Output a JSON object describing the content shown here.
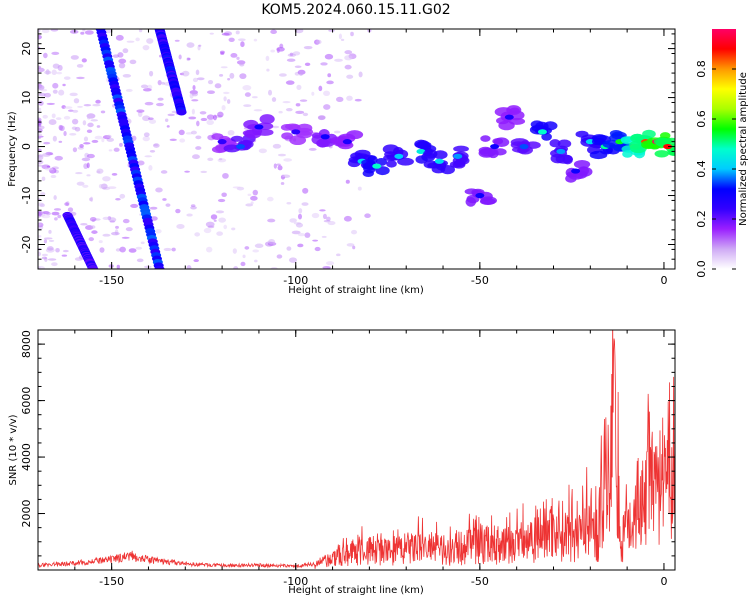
{
  "title": "KOM5.2024.060.15.11.G02",
  "chart_data": [
    {
      "type": "heatmap",
      "xlabel": "Height of straight line (km)",
      "ylabel": "Frequency (Hz)",
      "xlim": [
        -170,
        3
      ],
      "ylim": [
        -25,
        24
      ],
      "xticks": [
        -150,
        -100,
        -50,
        0
      ],
      "yticks": [
        20,
        10,
        0,
        -10,
        -20
      ],
      "colorbar": {
        "label": "Normalized spectral amplitude",
        "range": [
          0,
          0.96
        ],
        "ticks": [
          "0.0",
          "0.2",
          "0.4",
          "0.6",
          "0.8"
        ],
        "colors": [
          "#ffffff",
          "#cfaaf5",
          "#9a1fff",
          "#3300ff",
          "#0000ff",
          "#00ccff",
          "#00ffcc",
          "#00ff00",
          "#aaff00",
          "#ffff00",
          "#ff9900",
          "#ff0000",
          "#ff0066"
        ]
      },
      "streaks": [
        {
          "x_at_top": -153,
          "x_at_bottom": -137,
          "y_top": 24,
          "y_bottom": -25,
          "amplitude": 0.3
        },
        {
          "x_at_top": -137,
          "x_at_bottom": -131,
          "y_top": 24,
          "y_bottom": 7,
          "amplitude": 0.28
        },
        {
          "x_at_top": -162,
          "x_at_bottom": -155,
          "y_top": -14,
          "y_bottom": -25,
          "amplitude": 0.25
        }
      ],
      "signal_band": [
        {
          "x": -120,
          "y": 1,
          "amplitude": 0.25
        },
        {
          "x": -115,
          "y": 0,
          "amplitude": 0.35
        },
        {
          "x": -110,
          "y": 4,
          "amplitude": 0.3
        },
        {
          "x": -100,
          "y": 3,
          "amplitude": 0.25
        },
        {
          "x": -92,
          "y": 2,
          "amplitude": 0.3
        },
        {
          "x": -86,
          "y": 1,
          "amplitude": 0.28
        },
        {
          "x": -82,
          "y": -3,
          "amplitude": 0.42
        },
        {
          "x": -78,
          "y": -4,
          "amplitude": 0.48
        },
        {
          "x": -72,
          "y": -2,
          "amplitude": 0.4
        },
        {
          "x": -66,
          "y": -1,
          "amplitude": 0.45
        },
        {
          "x": -61,
          "y": -3,
          "amplitude": 0.42
        },
        {
          "x": -56,
          "y": -2,
          "amplitude": 0.38
        },
        {
          "x": -50,
          "y": -10,
          "amplitude": 0.3
        },
        {
          "x": -46,
          "y": 0,
          "amplitude": 0.3
        },
        {
          "x": -42,
          "y": 6,
          "amplitude": 0.28
        },
        {
          "x": -38,
          "y": 0,
          "amplitude": 0.35
        },
        {
          "x": -33,
          "y": 3,
          "amplitude": 0.48
        },
        {
          "x": -28,
          "y": -1,
          "amplitude": 0.38
        },
        {
          "x": -24,
          "y": -5,
          "amplitude": 0.3
        },
        {
          "x": -20,
          "y": 1,
          "amplitude": 0.42
        },
        {
          "x": -16,
          "y": 0,
          "amplitude": 0.5
        },
        {
          "x": -12,
          "y": 1,
          "amplitude": 0.55
        },
        {
          "x": -8,
          "y": 0,
          "amplitude": 0.78
        },
        {
          "x": -5,
          "y": 1,
          "amplitude": 0.85
        },
        {
          "x": -2,
          "y": 1,
          "amplitude": 0.95
        },
        {
          "x": 1,
          "y": 0,
          "amplitude": 0.88
        }
      ]
    },
    {
      "type": "line",
      "xlabel": "Height of straight line (km)",
      "ylabel": "SNR (10 * v/v)",
      "xlim": [
        -170,
        3
      ],
      "ylim": [
        0,
        8500
      ],
      "xticks": [
        -150,
        -100,
        -50,
        0
      ],
      "yticks": [
        2000,
        4000,
        6000,
        8000
      ],
      "line_color": "#ee3333",
      "series": [
        {
          "x": [
            -170,
            -160,
            -150,
            -145,
            -140,
            -130,
            -120,
            -110,
            -100,
            -95,
            -90,
            -85,
            -80,
            -75,
            -70,
            -65,
            -60,
            -55,
            -50,
            -45,
            -40,
            -35,
            -30,
            -25,
            -20,
            -18,
            -16,
            -15,
            -13.5,
            -12,
            -10,
            -8,
            -6,
            -4,
            -2,
            0,
            3
          ],
          "y": [
            200,
            280,
            420,
            600,
            420,
            250,
            180,
            200,
            160,
            250,
            500,
            800,
            950,
            850,
            1000,
            1100,
            900,
            1050,
            1300,
            1150,
            1200,
            1700,
            2100,
            1600,
            2400,
            1500,
            4800,
            3200,
            8400,
            1700,
            1800,
            2900,
            3500,
            4000,
            3400,
            3700,
            3900
          ]
        }
      ]
    }
  ]
}
